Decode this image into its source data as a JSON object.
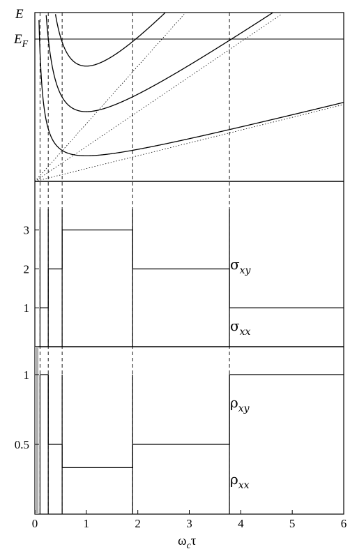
{
  "chart_data": [
    {
      "type": "line",
      "panel": "energy-levels",
      "ylabels": [
        "E",
        "E_F"
      ],
      "x_range": [
        0,
        6
      ],
      "fermi_level_label": "E_F",
      "y_axis_label": "E",
      "levels": [
        {
          "min_x": 1.0,
          "min_E_fraction_of_EF": 0.18
        },
        {
          "min_x": 1.0,
          "min_E_fraction_of_EF": 0.49
        },
        {
          "min_x": 1.0,
          "min_E_fraction_of_EF": 0.81
        }
      ],
      "dashed_verticals_x": [
        0.1,
        0.26,
        0.53,
        1.9,
        3.78
      ]
    },
    {
      "type": "line",
      "panel": "conductivity",
      "yticks": [
        1,
        2,
        3
      ],
      "ylim": [
        0,
        4.25
      ],
      "series": [
        {
          "name": "σxy",
          "label": "σ",
          "subscript": "xy",
          "x": [
            0.1,
            0.26,
            0.26,
            0.53,
            0.53,
            1.9,
            1.9,
            3.78,
            3.78,
            6.0
          ],
          "y": [
            1,
            1,
            2,
            2,
            3,
            3,
            2,
            2,
            1,
            1
          ]
        },
        {
          "name": "σxx",
          "label": "σ",
          "subscript": "xx",
          "spikes_x": [
            0.1,
            0.26,
            0.53,
            1.9,
            3.78
          ]
        }
      ]
    },
    {
      "type": "line",
      "panel": "resistivity",
      "yticks": [
        0.5,
        1
      ],
      "ylim": [
        0,
        1.2
      ],
      "xticks": [
        0,
        1,
        2,
        3,
        4,
        5,
        6
      ],
      "xlim": [
        0,
        6
      ],
      "xlabel": "ω_c τ",
      "series": [
        {
          "name": "ρxy",
          "label": "ρ",
          "subscript": "xy",
          "x": [
            0.1,
            0.26,
            0.26,
            0.53,
            0.53,
            1.9,
            1.9,
            3.78,
            3.78,
            6.0
          ],
          "y": [
            1,
            1,
            0.5,
            0.5,
            0.333,
            0.333,
            0.5,
            0.5,
            1,
            1
          ]
        },
        {
          "name": "ρxx",
          "label": "ρ",
          "subscript": "xx",
          "spikes_x": [
            0.1,
            0.26,
            0.53,
            1.9,
            3.78
          ]
        }
      ],
      "shaded_x_range": [
        0,
        0.07
      ],
      "shade_color": "#b0b0b0"
    }
  ],
  "labels": {
    "E": "E",
    "EF_main": "E",
    "EF_sub": "F",
    "xlabel_omega": "ω",
    "xlabel_sub": "c",
    "xlabel_tau": "τ",
    "sigma": "σ",
    "rho": "ρ",
    "xy": "xy",
    "xx": "xx"
  }
}
